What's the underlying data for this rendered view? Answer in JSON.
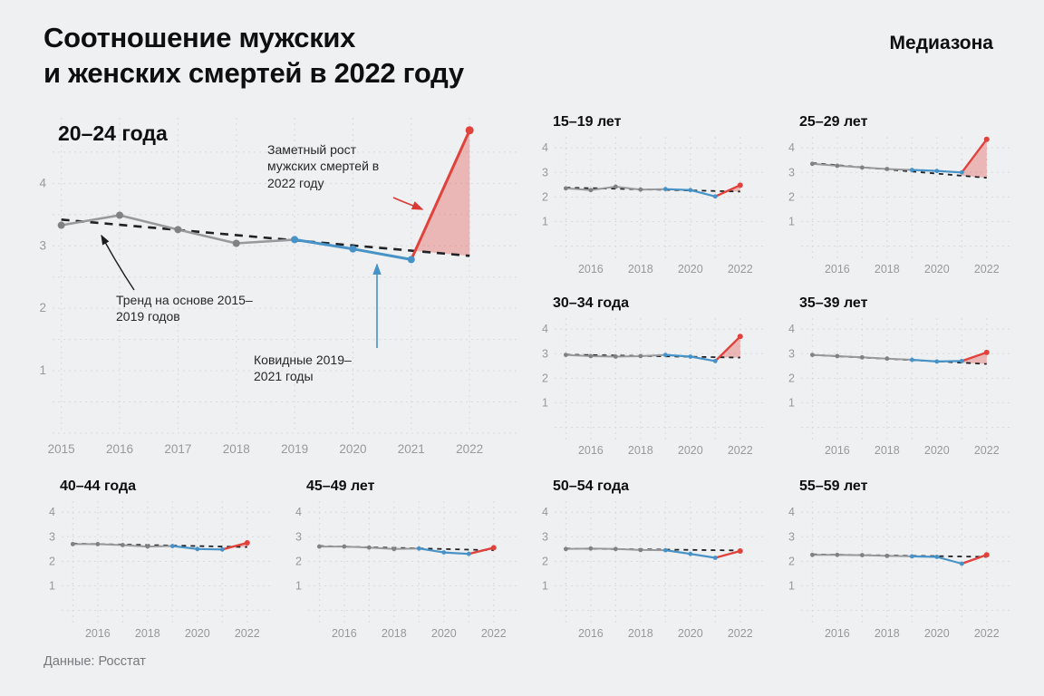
{
  "header": {
    "title_line1": "Соотношение мужских",
    "title_line2": "и женских смертей в 2022 году",
    "brand": "Медиазона"
  },
  "footer": {
    "source": "Данные: Росстат"
  },
  "annotations": {
    "rise": "Заметный рост мужских смертей в 2022 году",
    "trend": "Тренд на основе 2015–2019 годов",
    "covid": "Ковидные 2019–2021 годы"
  },
  "colors": {
    "background": "#eff0f2",
    "grid": "#d8dadc",
    "axis": "#96999d",
    "history": "#97999c",
    "history_dot": "#7f8184",
    "trend": "#202124",
    "covid": "#4792c6",
    "rise": "#e0423c",
    "rise_fill": "rgba(224,66,60,0.33)"
  },
  "chart_data": [
    {
      "type": "line",
      "title": "20–24 года",
      "xlabel": "",
      "ylabel": "",
      "x": [
        2015,
        2016,
        2017,
        2018,
        2019,
        2020,
        2021,
        2022
      ],
      "xticks": [
        2015,
        2016,
        2017,
        2018,
        2019,
        2020,
        2021,
        2022
      ],
      "yticks": [
        1,
        2,
        3,
        4
      ],
      "ylim": [
        0,
        5.05
      ],
      "grid": true,
      "legend": "none",
      "segments": {
        "history_years": [
          2015,
          2019
        ],
        "covid_years": [
          2019,
          2021
        ],
        "excess_years": [
          2021,
          2022
        ]
      },
      "series": [
        {
          "name": "ratio",
          "values": [
            3.33,
            3.49,
            3.26,
            3.04,
            3.1,
            2.95,
            2.78,
            4.85
          ]
        },
        {
          "name": "trend",
          "x": [
            2015,
            2022
          ],
          "values": [
            3.42,
            2.84
          ]
        }
      ]
    },
    {
      "type": "line",
      "title": "15–19 лет",
      "x": [
        2015,
        2016,
        2017,
        2018,
        2019,
        2020,
        2021,
        2022
      ],
      "xticks": [
        2016,
        2018,
        2020,
        2022
      ],
      "yticks": [
        1,
        2,
        3,
        4
      ],
      "ylim": [
        -0.5,
        4.45
      ],
      "grid": true,
      "series": [
        {
          "name": "ratio",
          "values": [
            2.35,
            2.28,
            2.42,
            2.3,
            2.32,
            2.28,
            2.02,
            2.48
          ]
        },
        {
          "name": "trend",
          "x": [
            2015,
            2022
          ],
          "values": [
            2.38,
            2.22
          ]
        }
      ]
    },
    {
      "type": "line",
      "title": "25–29 лет",
      "x": [
        2015,
        2016,
        2017,
        2018,
        2019,
        2020,
        2021,
        2022
      ],
      "xticks": [
        2016,
        2018,
        2020,
        2022
      ],
      "yticks": [
        1,
        2,
        3,
        4
      ],
      "ylim": [
        -0.5,
        4.45
      ],
      "grid": true,
      "series": [
        {
          "name": "ratio",
          "values": [
            3.35,
            3.27,
            3.2,
            3.14,
            3.1,
            3.06,
            3.0,
            4.35
          ]
        },
        {
          "name": "trend",
          "x": [
            2015,
            2022
          ],
          "values": [
            3.38,
            2.78
          ]
        }
      ]
    },
    {
      "type": "line",
      "title": "30–34 года",
      "x": [
        2015,
        2016,
        2017,
        2018,
        2019,
        2020,
        2021,
        2022
      ],
      "xticks": [
        2016,
        2018,
        2020,
        2022
      ],
      "yticks": [
        1,
        2,
        3,
        4
      ],
      "ylim": [
        -0.5,
        4.45
      ],
      "grid": true,
      "series": [
        {
          "name": "ratio",
          "values": [
            2.95,
            2.9,
            2.88,
            2.9,
            2.95,
            2.88,
            2.7,
            3.7
          ]
        },
        {
          "name": "trend",
          "x": [
            2015,
            2022
          ],
          "values": [
            2.96,
            2.84
          ]
        }
      ]
    },
    {
      "type": "line",
      "title": "35–39 лет",
      "x": [
        2015,
        2016,
        2017,
        2018,
        2019,
        2020,
        2021,
        2022
      ],
      "xticks": [
        2016,
        2018,
        2020,
        2022
      ],
      "yticks": [
        1,
        2,
        3,
        4
      ],
      "ylim": [
        -0.5,
        4.45
      ],
      "grid": true,
      "series": [
        {
          "name": "ratio",
          "values": [
            2.95,
            2.9,
            2.85,
            2.8,
            2.75,
            2.68,
            2.7,
            3.05
          ]
        },
        {
          "name": "trend",
          "x": [
            2015,
            2022
          ],
          "values": [
            2.95,
            2.58
          ]
        }
      ]
    },
    {
      "type": "line",
      "title": "40–44 года",
      "x": [
        2015,
        2016,
        2017,
        2018,
        2019,
        2020,
        2021,
        2022
      ],
      "xticks": [
        2016,
        2018,
        2020,
        2022
      ],
      "yticks": [
        1,
        2,
        3,
        4
      ],
      "ylim": [
        -0.5,
        4.45
      ],
      "grid": true,
      "series": [
        {
          "name": "ratio",
          "values": [
            2.7,
            2.7,
            2.66,
            2.6,
            2.62,
            2.5,
            2.48,
            2.75
          ]
        },
        {
          "name": "trend",
          "x": [
            2015,
            2022
          ],
          "values": [
            2.72,
            2.58
          ]
        }
      ]
    },
    {
      "type": "line",
      "title": "45–49 лет",
      "x": [
        2015,
        2016,
        2017,
        2018,
        2019,
        2020,
        2021,
        2022
      ],
      "xticks": [
        2016,
        2018,
        2020,
        2022
      ],
      "yticks": [
        1,
        2,
        3,
        4
      ],
      "ylim": [
        -0.5,
        4.45
      ],
      "grid": true,
      "series": [
        {
          "name": "ratio",
          "values": [
            2.6,
            2.6,
            2.56,
            2.5,
            2.52,
            2.36,
            2.3,
            2.55
          ]
        },
        {
          "name": "trend",
          "x": [
            2015,
            2022
          ],
          "values": [
            2.62,
            2.45
          ]
        }
      ]
    },
    {
      "type": "line",
      "title": "50–54 года",
      "x": [
        2015,
        2016,
        2017,
        2018,
        2019,
        2020,
        2021,
        2022
      ],
      "xticks": [
        2016,
        2018,
        2020,
        2022
      ],
      "yticks": [
        1,
        2,
        3,
        4
      ],
      "ylim": [
        -0.5,
        4.45
      ],
      "grid": true,
      "series": [
        {
          "name": "ratio",
          "values": [
            2.5,
            2.52,
            2.5,
            2.46,
            2.45,
            2.3,
            2.14,
            2.42
          ]
        },
        {
          "name": "trend",
          "x": [
            2015,
            2022
          ],
          "values": [
            2.52,
            2.44
          ]
        }
      ]
    },
    {
      "type": "line",
      "title": "55–59 лет",
      "x": [
        2015,
        2016,
        2017,
        2018,
        2019,
        2020,
        2021,
        2022
      ],
      "xticks": [
        2016,
        2018,
        2020,
        2022
      ],
      "yticks": [
        1,
        2,
        3,
        4
      ],
      "ylim": [
        -0.5,
        4.45
      ],
      "grid": true,
      "series": [
        {
          "name": "ratio",
          "values": [
            2.26,
            2.26,
            2.25,
            2.22,
            2.2,
            2.18,
            1.9,
            2.26
          ]
        },
        {
          "name": "trend",
          "x": [
            2015,
            2022
          ],
          "values": [
            2.28,
            2.18
          ]
        }
      ]
    }
  ]
}
